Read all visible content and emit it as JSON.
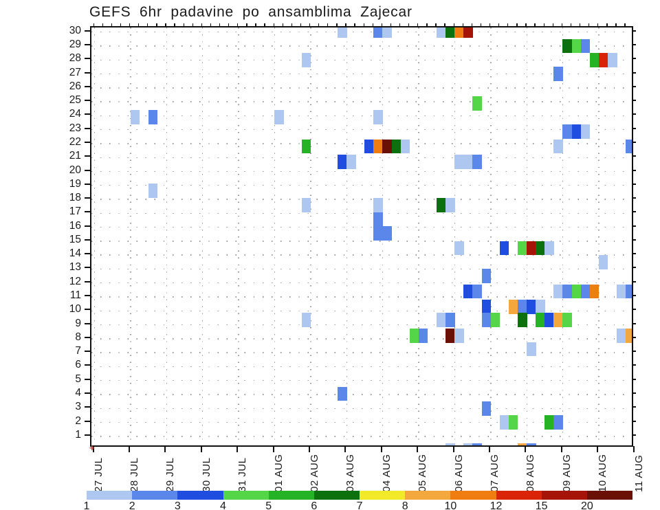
{
  "title": "GEFS 6hr padavine po ansamblima Zajecar",
  "chart_data": {
    "type": "heatmap",
    "title": "GEFS 6hr padavine po ansamblima Zajecar",
    "x_axis": {
      "labels": [
        "27 JUL",
        "28 JUL",
        "29 JUL",
        "30 JUL",
        "31 JUL",
        "01 AUG",
        "02 AUG",
        "03 AUG",
        "04 AUG",
        "05 AUG",
        "06 AUG",
        "07 AUG",
        "08 AUG",
        "09 AUG",
        "10 AUG",
        "11 AUG"
      ],
      "steps_per_day": 4
    },
    "y_axis": {
      "member_labels": [
        "1",
        "2",
        "3",
        "4",
        "5",
        "6",
        "7",
        "8",
        "9",
        "10",
        "11",
        "12",
        "13",
        "14",
        "15",
        "16",
        "17",
        "18",
        "19",
        "20",
        "21",
        "22",
        "23",
        "24",
        "25",
        "26",
        "27",
        "28",
        "29",
        "30"
      ]
    },
    "colorbar": {
      "labels": [
        "1",
        "2",
        "3",
        "4",
        "5",
        "6",
        "7",
        "8",
        "10",
        "12",
        "15",
        "20"
      ],
      "colors": [
        "#aec7f1",
        "#5b87ea",
        "#1f4de0",
        "#55d648",
        "#25b325",
        "#0c700c",
        "#f2ea28",
        "#f3a73d",
        "#f07d12",
        "#d92408",
        "#a51407",
        "#6a1004"
      ]
    },
    "grid": {
      "gridlines": "dotted",
      "grid_color": "#979797"
    },
    "cells_format": [
      "slot_6hr_index_from_27JUL_00h",
      "member_row",
      "color_index_into_colorbar"
    ],
    "cells": [
      [
        27,
        30.1,
        0
      ],
      [
        31,
        30.1,
        1
      ],
      [
        32,
        30.1,
        0
      ],
      [
        38,
        30.1,
        0
      ],
      [
        39,
        30.1,
        5
      ],
      [
        40,
        30.1,
        8
      ],
      [
        41,
        30.1,
        10
      ],
      [
        52,
        29,
        5
      ],
      [
        53,
        29,
        3
      ],
      [
        54,
        29,
        1
      ],
      [
        23,
        28,
        0
      ],
      [
        55,
        28,
        4
      ],
      [
        56,
        28,
        9
      ],
      [
        57,
        28,
        0
      ],
      [
        51,
        27,
        1
      ],
      [
        42,
        24.9,
        3
      ],
      [
        4,
        23.9,
        0
      ],
      [
        6,
        23.9,
        1
      ],
      [
        20,
        23.9,
        0
      ],
      [
        31,
        23.9,
        0
      ],
      [
        52,
        22.85,
        1
      ],
      [
        53,
        22.85,
        2
      ],
      [
        54,
        22.85,
        0
      ],
      [
        23,
        21.8,
        4
      ],
      [
        30,
        21.8,
        2
      ],
      [
        31,
        21.8,
        8
      ],
      [
        32,
        21.8,
        11
      ],
      [
        33,
        21.8,
        5
      ],
      [
        34,
        21.8,
        0
      ],
      [
        51,
        21.8,
        0
      ],
      [
        59,
        21.8,
        1
      ],
      [
        27,
        20.7,
        2
      ],
      [
        28,
        20.7,
        0
      ],
      [
        40,
        20.7,
        0
      ],
      [
        41,
        20.7,
        0
      ],
      [
        42,
        20.7,
        1
      ],
      [
        6,
        18.6,
        0
      ],
      [
        23,
        17.6,
        0
      ],
      [
        31,
        17.6,
        0
      ],
      [
        38,
        17.6,
        5
      ],
      [
        39,
        17.6,
        0
      ],
      [
        31,
        16.55,
        1
      ],
      [
        31,
        15.55,
        1
      ],
      [
        32,
        15.55,
        1
      ],
      [
        40,
        14.5,
        0
      ],
      [
        45,
        14.5,
        2
      ],
      [
        47,
        14.5,
        3
      ],
      [
        48,
        14.5,
        10
      ],
      [
        49,
        14.5,
        5
      ],
      [
        50,
        14.5,
        0
      ],
      [
        56,
        13.5,
        0
      ],
      [
        43,
        12.5,
        1
      ],
      [
        41,
        11.4,
        2
      ],
      [
        42,
        11.4,
        1
      ],
      [
        51,
        11.4,
        0
      ],
      [
        52,
        11.4,
        1
      ],
      [
        53,
        11.4,
        3
      ],
      [
        54,
        11.4,
        1
      ],
      [
        55,
        11.4,
        8
      ],
      [
        58,
        11.4,
        0
      ],
      [
        59,
        11.4,
        1
      ],
      [
        43,
        10.3,
        2
      ],
      [
        46,
        10.3,
        7
      ],
      [
        47,
        10.3,
        1
      ],
      [
        48,
        10.3,
        2
      ],
      [
        49,
        10.3,
        0
      ],
      [
        23,
        9.35,
        0
      ],
      [
        38,
        9.35,
        0
      ],
      [
        39,
        9.35,
        1
      ],
      [
        43,
        9.35,
        1
      ],
      [
        44,
        9.35,
        3
      ],
      [
        47,
        9.35,
        5
      ],
      [
        49,
        9.35,
        4
      ],
      [
        50,
        9.35,
        2
      ],
      [
        51,
        9.35,
        7
      ],
      [
        52,
        9.35,
        3
      ],
      [
        35,
        8.2,
        3
      ],
      [
        36,
        8.2,
        1
      ],
      [
        39,
        8.2,
        11
      ],
      [
        40,
        8.2,
        0
      ],
      [
        58,
        8.2,
        0
      ],
      [
        59,
        8.2,
        7
      ],
      [
        48,
        7.25,
        0
      ],
      [
        27,
        4.05,
        1
      ],
      [
        43,
        3,
        1
      ],
      [
        45,
        2,
        0
      ],
      [
        46,
        2,
        3
      ],
      [
        50,
        2,
        4
      ],
      [
        51,
        2,
        1
      ],
      [
        39,
        0,
        0
      ],
      [
        41,
        0,
        0
      ],
      [
        42,
        0,
        1
      ],
      [
        47,
        0,
        7
      ],
      [
        48,
        0,
        1
      ]
    ]
  }
}
